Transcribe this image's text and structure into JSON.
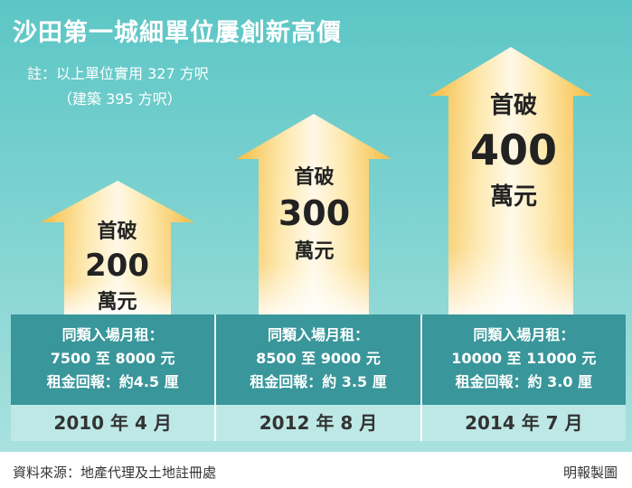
{
  "title": "沙田第一城細單位屢創新高價",
  "note_line1": "註：以上單位實用 327 方呎",
  "note_line2": "（建築 395 方呎）",
  "chart_data": {
    "type": "bar",
    "categories": [
      "2010 年 4 月",
      "2012 年 8 月",
      "2014 年 7 月"
    ],
    "values": [
      200,
      300,
      400
    ],
    "value_prefix": "首破",
    "value_unit": "萬元",
    "colors": {
      "arrow_fill": "#f8c64a",
      "arrow_core": "#fff6dc",
      "background": "#5cc6c5"
    }
  },
  "info": [
    {
      "line1": "同類入場月租：",
      "line2": "7500 至 8000 元",
      "line3": "租金回報：約4.5 厘"
    },
    {
      "line1": "同類入場月租：",
      "line2": "8500 至 9000 元",
      "line3": "租金回報：約 3.5 厘"
    },
    {
      "line1": "同類入場月租：",
      "line2": "10000 至 11000 元",
      "line3": "租金回報：約 3.0 厘"
    }
  ],
  "source": "資料來源：地產代理及土地註冊處",
  "credit": "明報製圖"
}
